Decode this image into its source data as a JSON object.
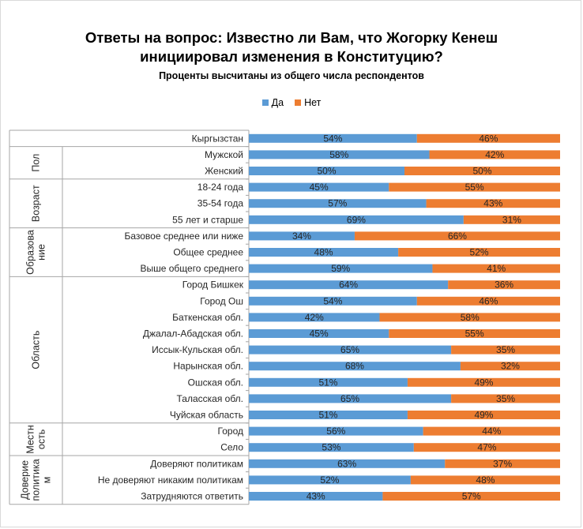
{
  "chart_data": {
    "type": "bar",
    "orientation": "horizontal-stacked-100",
    "title": "Ответы на вопрос: Известно ли Вам, что Жогорку Кенеш инициировал изменения в Конституцию?",
    "title_lines": [
      "Ответы на вопрос: Известно ли Вам, что Жогорку Кенеш",
      "инициировал изменения в Конституцию?"
    ],
    "subtitle": "Проценты высчитаны из общего числа респондентов",
    "legend_position": "top",
    "grid": false,
    "xlim": [
      0,
      100
    ],
    "series": [
      {
        "name": "Да",
        "color": "#5b9bd5"
      },
      {
        "name": "Нет",
        "color": "#ed7d31"
      }
    ],
    "groups": [
      {
        "label_lines": [],
        "rows": [
          {
            "category": "Кыргызстан",
            "yes": 54,
            "no": 46
          }
        ]
      },
      {
        "label_lines": [
          "Пол"
        ],
        "rows": [
          {
            "category": "Мужской",
            "yes": 58,
            "no": 42
          },
          {
            "category": "Женский",
            "yes": 50,
            "no": 50
          }
        ]
      },
      {
        "label_lines": [
          "Возраст"
        ],
        "rows": [
          {
            "category": "18-24 года",
            "yes": 45,
            "no": 55
          },
          {
            "category": "35-54 года",
            "yes": 57,
            "no": 43
          },
          {
            "category": "55 лет и старше",
            "yes": 69,
            "no": 31
          }
        ]
      },
      {
        "label_lines": [
          "Образова",
          "ние"
        ],
        "rows": [
          {
            "category": "Базовое среднее или ниже",
            "yes": 34,
            "no": 66
          },
          {
            "category": "Общее среднее",
            "yes": 48,
            "no": 52
          },
          {
            "category": "Выше общего среднего",
            "yes": 59,
            "no": 41
          }
        ]
      },
      {
        "label_lines": [
          "Область"
        ],
        "rows": [
          {
            "category": "Город Бишкек",
            "yes": 64,
            "no": 36
          },
          {
            "category": "Город Ош",
            "yes": 54,
            "no": 46
          },
          {
            "category": "Баткенская обл.",
            "yes": 42,
            "no": 58
          },
          {
            "category": "Джалал-Абадская обл.",
            "yes": 45,
            "no": 55
          },
          {
            "category": "Иссык-Кульская обл.",
            "yes": 65,
            "no": 35
          },
          {
            "category": "Нарынская обл.",
            "yes": 68,
            "no": 32
          },
          {
            "category": "Ошская обл.",
            "yes": 51,
            "no": 49
          },
          {
            "category": "Таласская обл.",
            "yes": 65,
            "no": 35
          },
          {
            "category": "Чуйская область",
            "yes": 51,
            "no": 49
          }
        ]
      },
      {
        "label_lines": [
          "Местн",
          "ость"
        ],
        "rows": [
          {
            "category": "Город",
            "yes": 56,
            "no": 44
          },
          {
            "category": "Село",
            "yes": 53,
            "no": 47
          }
        ]
      },
      {
        "label_lines": [
          "Доверие",
          "политика",
          "м"
        ],
        "rows": [
          {
            "category": "Доверяют политикам",
            "yes": 63,
            "no": 37
          },
          {
            "category": "Не доверяют никаким политикам",
            "yes": 52,
            "no": 48
          },
          {
            "category": "Затрудняются ответить",
            "yes": 43,
            "no": 57
          }
        ]
      }
    ]
  }
}
